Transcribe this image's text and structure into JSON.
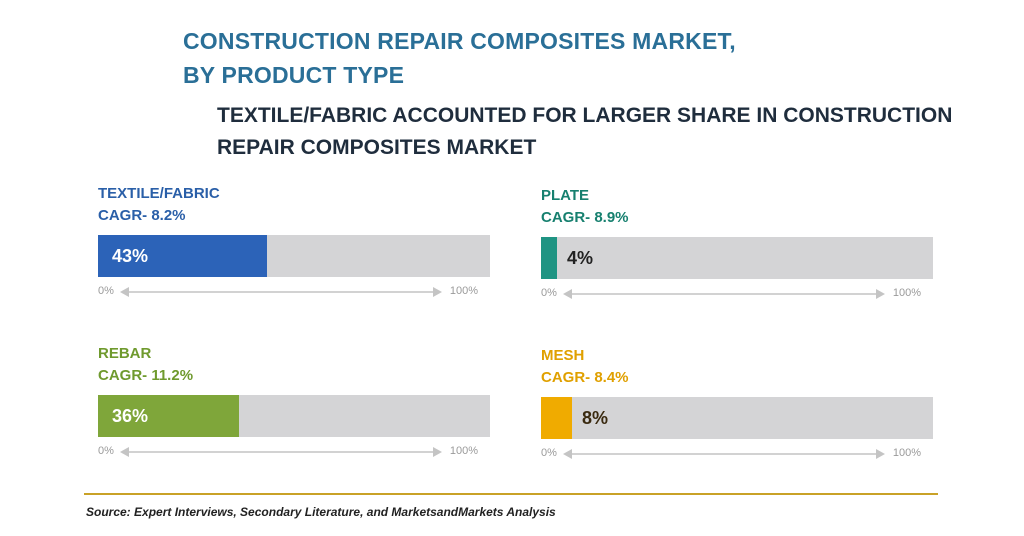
{
  "title_lines": [
    "CONSTRUCTION REPAIR COMPOSITES MARKET,",
    "BY PRODUCT TYPE"
  ],
  "subtitle_lines": [
    "TEXTILE/FABRIC ACCOUNTED FOR LARGER SHARE IN CONSTRUCTION",
    "REPAIR COMPOSITES MARKET"
  ],
  "source": "Source: Expert Interviews, Secondary Literature, and MarketsandMarkets Analysis",
  "chart_data": {
    "type": "bar",
    "title": "CONSTRUCTION REPAIR COMPOSITES MARKET, BY PRODUCT TYPE",
    "subtitle": "TEXTILE/FABRIC ACCOUNTED FOR LARGER SHARE IN CONSTRUCTION REPAIR COMPOSITES MARKET",
    "orientation": "horizontal",
    "ylim": [
      0,
      100
    ],
    "scale_min_label": "0%",
    "scale_max_label": "100%",
    "grid": false,
    "categories": [
      "TEXTILE/FABRIC",
      "PLATE",
      "REBAR",
      "MESH"
    ],
    "values": [
      43,
      4,
      36,
      8
    ],
    "segments": [
      {
        "name": "TEXTILE/FABRIC",
        "cagr": "CAGR- 8.2%",
        "value": 43,
        "label": "43%",
        "color": "#2c63b8",
        "name_color": "#2a5fa8",
        "label_color": "#ffffff"
      },
      {
        "name": "PLATE",
        "cagr": "CAGR- 8.9%",
        "value": 4,
        "label": "4%",
        "color": "#1f9483",
        "name_color": "#17806f",
        "label_color": "#222222"
      },
      {
        "name": "REBAR",
        "cagr": "CAGR- 11.2%",
        "value": 36,
        "label": "36%",
        "color": "#7fa63a",
        "name_color": "#6f9a2e",
        "label_color": "#ffffff"
      },
      {
        "name": "MESH",
        "cagr": "CAGR- 8.4%",
        "value": 8,
        "label": "8%",
        "color": "#f0ab00",
        "name_color": "#e0a000",
        "label_color": "#3a2a10"
      }
    ]
  }
}
